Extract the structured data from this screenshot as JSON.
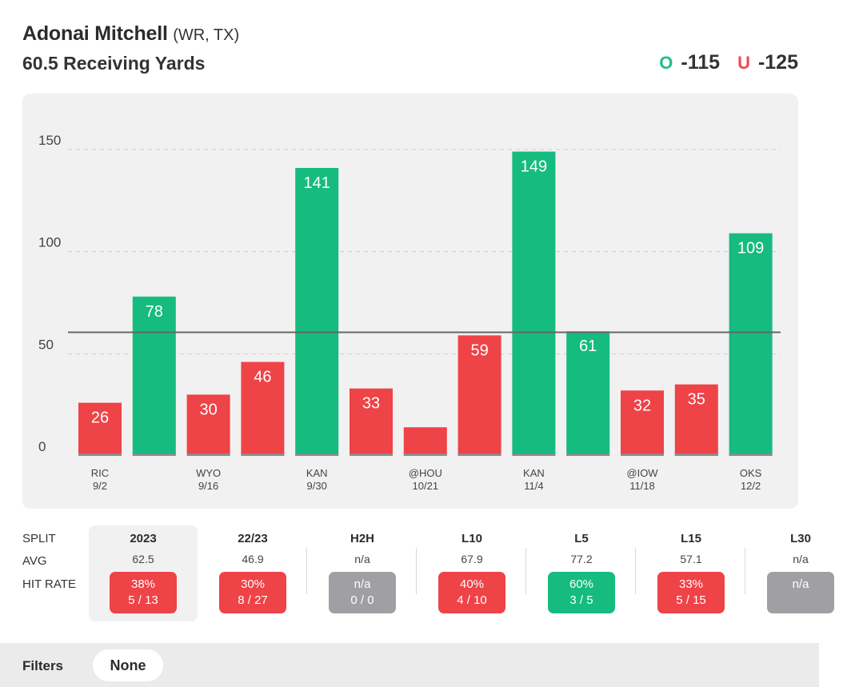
{
  "header": {
    "player_name": "Adonai Mitchell",
    "player_meta": "(WR, TX)",
    "prop": "60.5 Receiving Yards",
    "over_label": "O",
    "over_odds": "-115",
    "under_label": "U",
    "under_odds": "-125"
  },
  "colors": {
    "over": "#16bb80",
    "under": "#ee4347",
    "neutral": "#a0a0a4",
    "line": "#666666"
  },
  "chart_data": {
    "type": "bar",
    "title": "60.5 Receiving Yards",
    "ylim": [
      0,
      150
    ],
    "yticks": [
      0,
      50,
      100,
      150
    ],
    "line_value": 60.5,
    "values": [
      26,
      78,
      30,
      46,
      141,
      33,
      14,
      59,
      149,
      61,
      32,
      35,
      109
    ],
    "data_labels": [
      "26",
      "78",
      "30",
      "46",
      "141",
      "33",
      "",
      "59",
      "149",
      "61",
      "32",
      "35",
      "109"
    ],
    "tick_labels": [
      {
        "index": 0,
        "opp": "RIC",
        "date": "9/2"
      },
      {
        "index": 2,
        "opp": "WYO",
        "date": "9/16"
      },
      {
        "index": 4,
        "opp": "KAN",
        "date": "9/30"
      },
      {
        "index": 6,
        "opp": "@HOU",
        "date": "10/21"
      },
      {
        "index": 8,
        "opp": "KAN",
        "date": "11/4"
      },
      {
        "index": 10,
        "opp": "@IOW",
        "date": "11/18"
      },
      {
        "index": 12,
        "opp": "OKS",
        "date": "12/2"
      }
    ],
    "grid": true
  },
  "splits": {
    "row_labels": {
      "split": "SPLIT",
      "avg": "AVG",
      "hit_rate": "HIT RATE"
    },
    "columns": [
      {
        "name": "2023",
        "avg": "62.5",
        "pct": "38%",
        "record": "5 / 13",
        "status": "under",
        "selected": true
      },
      {
        "name": "22/23",
        "avg": "46.9",
        "pct": "30%",
        "record": "8 / 27",
        "status": "under",
        "selected": false
      },
      {
        "name": "H2H",
        "avg": "n/a",
        "pct": "n/a",
        "record": "0 / 0",
        "status": "neutral",
        "selected": false
      },
      {
        "name": "L10",
        "avg": "67.9",
        "pct": "40%",
        "record": "4 / 10",
        "status": "under",
        "selected": false
      },
      {
        "name": "L5",
        "avg": "77.2",
        "pct": "60%",
        "record": "3 / 5",
        "status": "over",
        "selected": false
      },
      {
        "name": "L15",
        "avg": "57.1",
        "pct": "33%",
        "record": "5 / 15",
        "status": "under",
        "selected": false
      },
      {
        "name": "L30",
        "avg": "n/a",
        "pct": "n/a",
        "record": "",
        "status": "neutral",
        "selected": false
      }
    ]
  },
  "filters": {
    "label": "Filters",
    "value": "None"
  }
}
